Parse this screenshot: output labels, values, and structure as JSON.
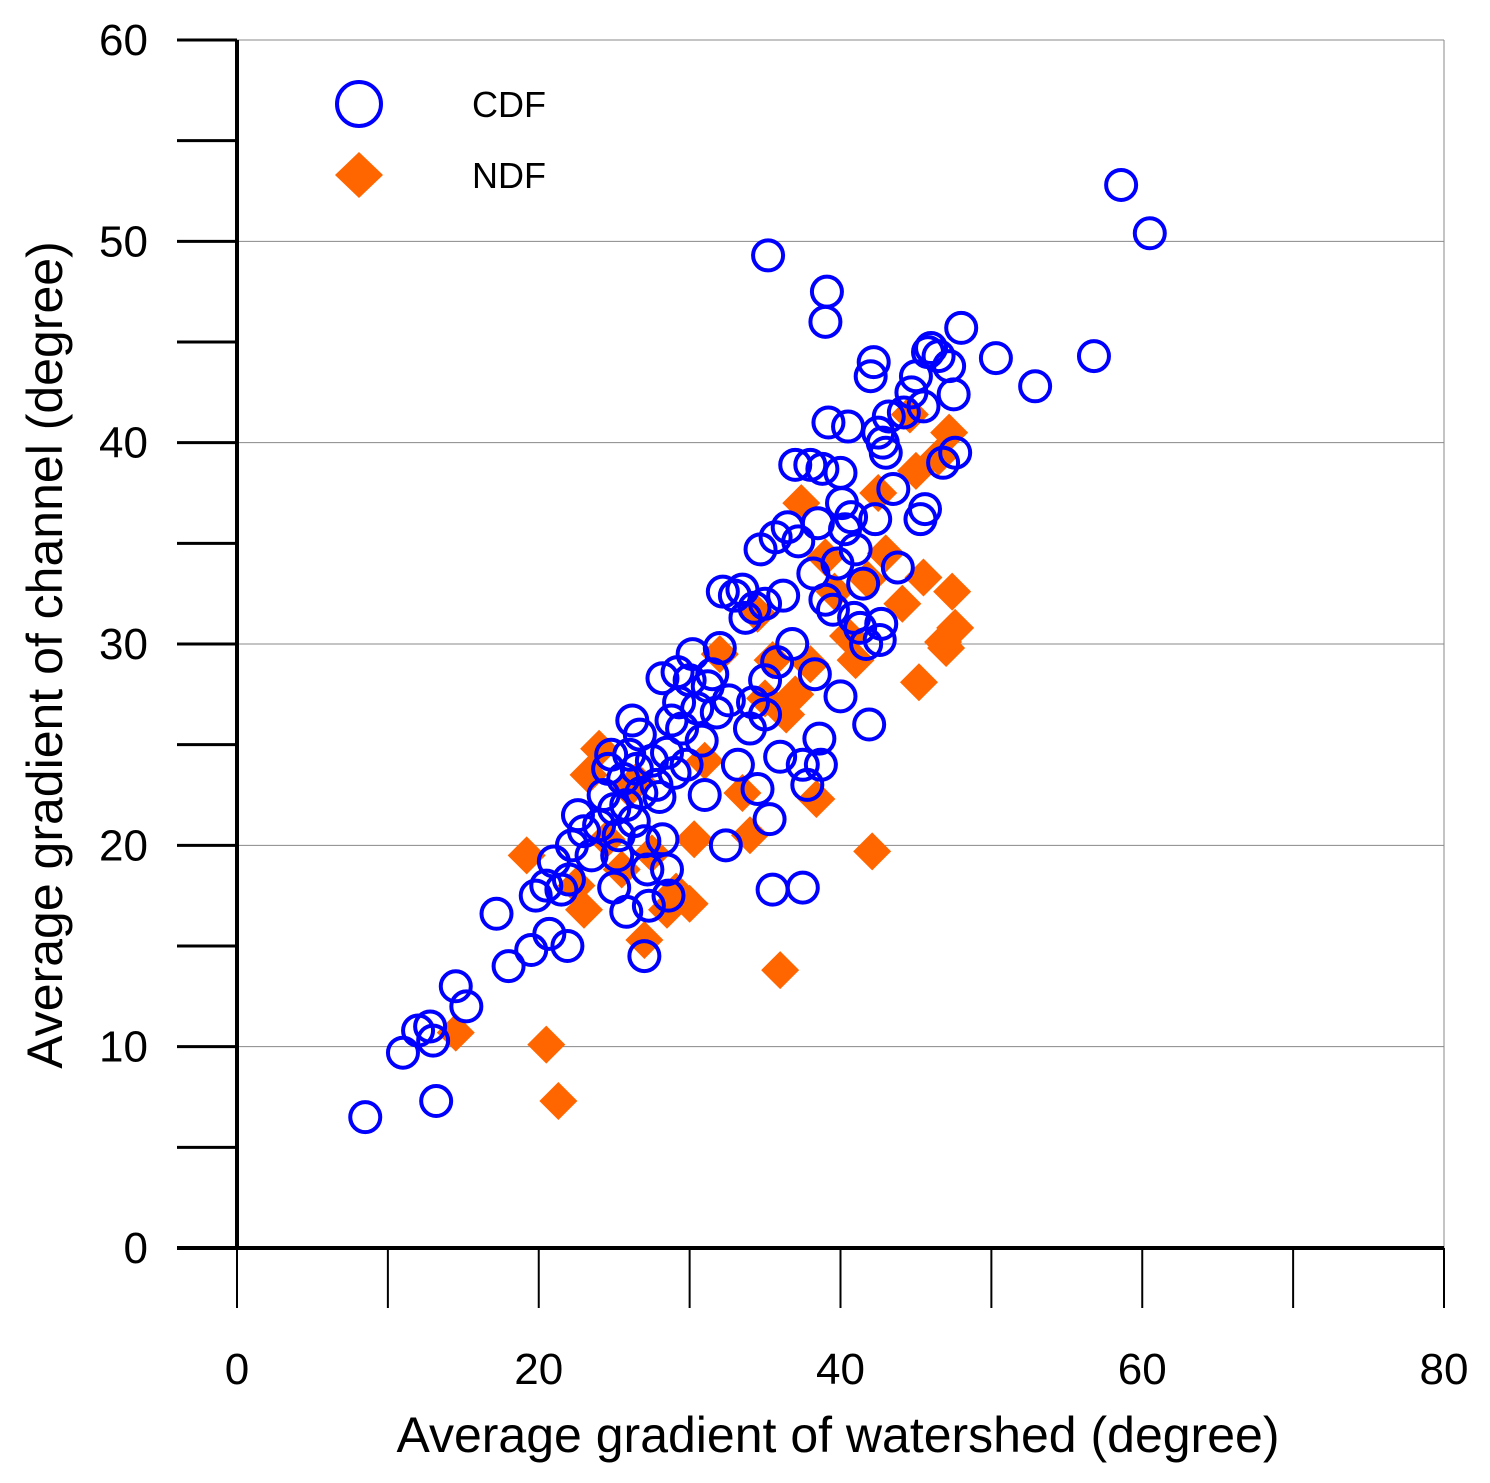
{
  "chart_data": {
    "type": "scatter",
    "title": "",
    "xlabel": "Average gradient of watershed (degree)",
    "ylabel": "Average gradient of channel (degree)",
    "xlim": [
      0,
      80
    ],
    "ylim": [
      0,
      60
    ],
    "x_ticks": [
      "0",
      "20",
      "40",
      "60",
      "80"
    ],
    "y_ticks": [
      "0",
      "10",
      "20",
      "30",
      "40",
      "50",
      "60"
    ],
    "grid": "horizontal",
    "legend_position": "top-left",
    "series": [
      {
        "name": "CDF",
        "marker": "open-circle",
        "color": "#0000ff",
        "points": [
          [
            8.5,
            6.5
          ],
          [
            11,
            9.7
          ],
          [
            12,
            10.8
          ],
          [
            12.8,
            11
          ],
          [
            13,
            10.3
          ],
          [
            13.2,
            7.3
          ],
          [
            14.5,
            13
          ],
          [
            15.2,
            12
          ],
          [
            17.2,
            16.6
          ],
          [
            18,
            14
          ],
          [
            19.5,
            14.8
          ],
          [
            19.8,
            17.5
          ],
          [
            20.5,
            18
          ],
          [
            20.7,
            15.6
          ],
          [
            21,
            19.2
          ],
          [
            21.5,
            17.8
          ],
          [
            21.9,
            15
          ],
          [
            22,
            18.3
          ],
          [
            22.2,
            20
          ],
          [
            22.6,
            21.5
          ],
          [
            23,
            20.7
          ],
          [
            23.5,
            19.5
          ],
          [
            24,
            21
          ],
          [
            24.3,
            22.5
          ],
          [
            24.6,
            23.8
          ],
          [
            24.8,
            24.5
          ],
          [
            25,
            21.8
          ],
          [
            25,
            17.9
          ],
          [
            25.2,
            19.5
          ],
          [
            25.3,
            20.5
          ],
          [
            25.6,
            23.3
          ],
          [
            25.8,
            22
          ],
          [
            25.8,
            16.7
          ],
          [
            26,
            24.5
          ],
          [
            26.2,
            26.2
          ],
          [
            26.3,
            21.2
          ],
          [
            26.5,
            23.8
          ],
          [
            26.7,
            25.5
          ],
          [
            26.8,
            22.6
          ],
          [
            27,
            20.2
          ],
          [
            27,
            14.5
          ],
          [
            27.2,
            18.8
          ],
          [
            27.3,
            17
          ],
          [
            27.5,
            24.2
          ],
          [
            27.8,
            23
          ],
          [
            28,
            22.4
          ],
          [
            28.2,
            20.3
          ],
          [
            28.2,
            28.3
          ],
          [
            28.5,
            24.6
          ],
          [
            28.5,
            18.8
          ],
          [
            28.6,
            17.5
          ],
          [
            28.8,
            26.2
          ],
          [
            29,
            23.6
          ],
          [
            29.2,
            28.6
          ],
          [
            29.3,
            27.1
          ],
          [
            29.5,
            25.8
          ],
          [
            29.8,
            24
          ],
          [
            30,
            28.2
          ],
          [
            30.2,
            29.5
          ],
          [
            30.5,
            26.8
          ],
          [
            30.8,
            25.2
          ],
          [
            31,
            22.5
          ],
          [
            31.2,
            27.9
          ],
          [
            31.5,
            28.5
          ],
          [
            31.8,
            26.6
          ],
          [
            32,
            29.8
          ],
          [
            32.2,
            32.6
          ],
          [
            32.4,
            20
          ],
          [
            32.6,
            27.2
          ],
          [
            33,
            32.4
          ],
          [
            33.2,
            24
          ],
          [
            33.5,
            32.7
          ],
          [
            33.7,
            31.3
          ],
          [
            34,
            25.8
          ],
          [
            34.2,
            27.1
          ],
          [
            34.3,
            31.8
          ],
          [
            34.5,
            22.8
          ],
          [
            34.7,
            34.7
          ],
          [
            35,
            32
          ],
          [
            35,
            28.2
          ],
          [
            35,
            26.5
          ],
          [
            35.2,
            49.3
          ],
          [
            35.3,
            21.3
          ],
          [
            35.5,
            17.8
          ],
          [
            35.7,
            35.3
          ],
          [
            35.8,
            29.1
          ],
          [
            36,
            24.4
          ],
          [
            36.2,
            32.4
          ],
          [
            36.5,
            35.8
          ],
          [
            36.8,
            30
          ],
          [
            37,
            38.9
          ],
          [
            37.2,
            35.1
          ],
          [
            37.5,
            24
          ],
          [
            37.5,
            17.9
          ],
          [
            37.8,
            23
          ],
          [
            38,
            38.9
          ],
          [
            38.2,
            33.5
          ],
          [
            38.3,
            28.5
          ],
          [
            38.5,
            36
          ],
          [
            38.6,
            25.3
          ],
          [
            38.7,
            24
          ],
          [
            38.8,
            38.7
          ],
          [
            39,
            32.2
          ],
          [
            39,
            46
          ],
          [
            39.1,
            47.5
          ],
          [
            39.2,
            41
          ],
          [
            39.5,
            31.7
          ],
          [
            39.8,
            34
          ],
          [
            40,
            38.5
          ],
          [
            40,
            27.4
          ],
          [
            40.1,
            37
          ],
          [
            40.3,
            35.7
          ],
          [
            40.5,
            40.8
          ],
          [
            40.7,
            36.3
          ],
          [
            40.9,
            31.3
          ],
          [
            41,
            34.7
          ],
          [
            41.3,
            30.8
          ],
          [
            41.5,
            33
          ],
          [
            41.7,
            30
          ],
          [
            41.9,
            26
          ],
          [
            42,
            43.3
          ],
          [
            42.2,
            44
          ],
          [
            42.3,
            36.2
          ],
          [
            42.5,
            40.5
          ],
          [
            42.6,
            30.2
          ],
          [
            42.7,
            31
          ],
          [
            42.8,
            40
          ],
          [
            43,
            39.5
          ],
          [
            43.2,
            41.3
          ],
          [
            43.5,
            37.7
          ],
          [
            43.8,
            33.8
          ],
          [
            44.2,
            41.5
          ],
          [
            44.7,
            42.5
          ],
          [
            45,
            43.3
          ],
          [
            45.3,
            36.2
          ],
          [
            45.5,
            41.8
          ],
          [
            45.6,
            36.7
          ],
          [
            45.8,
            44.5
          ],
          [
            46,
            44.7
          ],
          [
            46.5,
            44.3
          ],
          [
            46.8,
            39
          ],
          [
            47.2,
            43.8
          ],
          [
            47.5,
            42.4
          ],
          [
            47.6,
            39.5
          ],
          [
            48,
            45.7
          ],
          [
            50.3,
            44.2
          ],
          [
            52.9,
            42.8
          ],
          [
            56.8,
            44.3
          ],
          [
            58.6,
            52.8
          ],
          [
            60.5,
            50.4
          ]
        ]
      },
      {
        "name": "NDF",
        "marker": "filled-diamond",
        "color": "#ff6600",
        "points": [
          [
            14.5,
            10.7
          ],
          [
            19.2,
            19.5
          ],
          [
            20.5,
            10.1
          ],
          [
            21.3,
            7.3
          ],
          [
            22.5,
            18
          ],
          [
            23,
            16.8
          ],
          [
            23.3,
            23.5
          ],
          [
            24,
            24.8
          ],
          [
            24.5,
            20.3
          ],
          [
            25.5,
            18.8
          ],
          [
            26,
            22.8
          ],
          [
            26.5,
            23.2
          ],
          [
            27,
            15.3
          ],
          [
            27.5,
            19.6
          ],
          [
            28.5,
            16.8
          ],
          [
            29.1,
            17.7
          ],
          [
            30,
            17.1
          ],
          [
            30.3,
            20.3
          ],
          [
            31,
            24.2
          ],
          [
            32,
            29.5
          ],
          [
            33.5,
            22.6
          ],
          [
            34,
            20.5
          ],
          [
            34.5,
            31.5
          ],
          [
            35,
            27.3
          ],
          [
            35.5,
            29.2
          ],
          [
            36,
            13.8
          ],
          [
            36.4,
            26.5
          ],
          [
            37,
            27.5
          ],
          [
            37.4,
            37
          ],
          [
            38,
            29
          ],
          [
            38.4,
            22.3
          ],
          [
            39,
            34.3
          ],
          [
            39.6,
            32.6
          ],
          [
            40.5,
            30.4
          ],
          [
            41,
            29.2
          ],
          [
            41.8,
            33.2
          ],
          [
            42.1,
            19.7
          ],
          [
            42.5,
            37.5
          ],
          [
            43,
            34.5
          ],
          [
            44.1,
            32
          ],
          [
            44.6,
            41.4
          ],
          [
            45,
            38.6
          ],
          [
            45.2,
            28.1
          ],
          [
            45.5,
            33.3
          ],
          [
            46.5,
            39.3
          ],
          [
            46.8,
            30.1
          ],
          [
            47,
            29.8
          ],
          [
            47.4,
            32.6
          ],
          [
            47.6,
            30.8
          ],
          [
            47.2,
            40.5
          ]
        ]
      }
    ]
  }
}
